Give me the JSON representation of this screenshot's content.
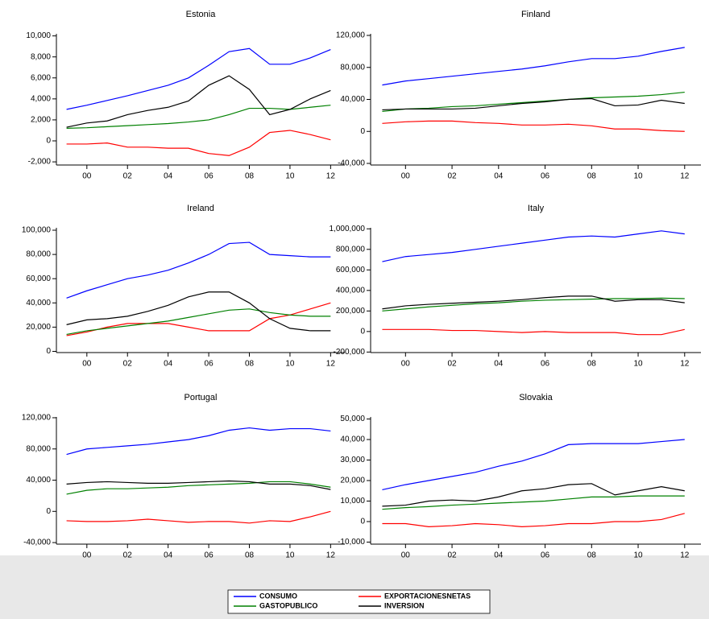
{
  "chart_data": [
    {
      "type": "line",
      "title": "Estonia",
      "x": [
        1999,
        2000,
        2001,
        2002,
        2003,
        2004,
        2005,
        2006,
        2007,
        2008,
        2009,
        2010,
        2011,
        2012
      ],
      "xlim": [
        1998.5,
        2012.7
      ],
      "xticks": [
        {
          "value": 2000,
          "label": "00"
        },
        {
          "value": 2002,
          "label": "02"
        },
        {
          "value": 2004,
          "label": "04"
        },
        {
          "value": 2006,
          "label": "06"
        },
        {
          "value": 2008,
          "label": "08"
        },
        {
          "value": 2010,
          "label": "10"
        },
        {
          "value": 2012,
          "label": "12"
        }
      ],
      "ylim": [
        -2300,
        10200
      ],
      "yticks": [
        {
          "value": -2000,
          "label": "-2,000"
        },
        0,
        {
          "value": 2000,
          "label": "2,000"
        },
        {
          "value": 4000,
          "label": "4,000"
        },
        {
          "value": 6000,
          "label": "6,000"
        },
        {
          "value": 8000,
          "label": "8,000"
        },
        {
          "value": 10000,
          "label": "10,000"
        }
      ],
      "series": [
        {
          "name": "CONSUMO",
          "color": "#0000ff",
          "values": [
            3000,
            3400,
            3850,
            4300,
            4800,
            5300,
            6000,
            7200,
            8500,
            8800,
            7300,
            7300,
            7900,
            8700
          ]
        },
        {
          "name": "EXPORTACIONESNETAS",
          "color": "#ff0000",
          "values": [
            -300,
            -300,
            -200,
            -600,
            -600,
            -700,
            -700,
            -1200,
            -1400,
            -600,
            800,
            1000,
            600,
            100
          ]
        },
        {
          "name": "GASTOPUBLICO",
          "color": "#008000",
          "values": [
            1200,
            1250,
            1350,
            1450,
            1550,
            1650,
            1800,
            2000,
            2500,
            3100,
            3100,
            3000,
            3200,
            3400
          ]
        },
        {
          "name": "INVERSION",
          "color": "#000000",
          "values": [
            1300,
            1700,
            1900,
            2500,
            2900,
            3200,
            3800,
            5300,
            6200,
            4900,
            2500,
            3000,
            4000,
            4800
          ]
        }
      ]
    },
    {
      "type": "line",
      "title": "Finland",
      "x": [
        1999,
        2000,
        2001,
        2002,
        2003,
        2004,
        2005,
        2006,
        2007,
        2008,
        2009,
        2010,
        2011,
        2012
      ],
      "xlim": [
        1998.5,
        2012.7
      ],
      "xticks": [
        {
          "value": 2000,
          "label": "00"
        },
        {
          "value": 2002,
          "label": "02"
        },
        {
          "value": 2004,
          "label": "04"
        },
        {
          "value": 2006,
          "label": "06"
        },
        {
          "value": 2008,
          "label": "08"
        },
        {
          "value": 2010,
          "label": "10"
        },
        {
          "value": 2012,
          "label": "12"
        }
      ],
      "ylim": [
        -42000,
        122000
      ],
      "yticks": [
        {
          "value": -40000,
          "label": "-40,000"
        },
        0,
        {
          "value": 40000,
          "label": "40,000"
        },
        {
          "value": 80000,
          "label": "80,000"
        },
        {
          "value": 120000,
          "label": "120,000"
        }
      ],
      "series": [
        {
          "name": "CONSUMO",
          "color": "#0000ff",
          "values": [
            58000,
            63000,
            66000,
            69000,
            72000,
            75000,
            78000,
            82000,
            87000,
            91000,
            91000,
            94000,
            100000,
            105000
          ]
        },
        {
          "name": "EXPORTACIONESNETAS",
          "color": "#ff0000",
          "values": [
            10000,
            12000,
            13000,
            13000,
            11000,
            10000,
            8000,
            8000,
            9000,
            7000,
            3000,
            3000,
            1000,
            0
          ]
        },
        {
          "name": "GASTOPUBLICO",
          "color": "#008000",
          "values": [
            25000,
            28000,
            29000,
            31000,
            32000,
            34000,
            36000,
            38000,
            40000,
            42000,
            43000,
            44000,
            46000,
            49000
          ]
        },
        {
          "name": "INVERSION",
          "color": "#000000",
          "values": [
            27000,
            28000,
            28000,
            28000,
            29000,
            32000,
            35000,
            37000,
            40000,
            41000,
            32000,
            33000,
            39000,
            35000
          ]
        }
      ]
    },
    {
      "type": "line",
      "title": "Ireland",
      "x": [
        1999,
        2000,
        2001,
        2002,
        2003,
        2004,
        2005,
        2006,
        2007,
        2008,
        2009,
        2010,
        2011,
        2012
      ],
      "xlim": [
        1998.5,
        2012.7
      ],
      "xticks": [
        {
          "value": 2000,
          "label": "00"
        },
        {
          "value": 2002,
          "label": "02"
        },
        {
          "value": 2004,
          "label": "04"
        },
        {
          "value": 2006,
          "label": "06"
        },
        {
          "value": 2008,
          "label": "08"
        },
        {
          "value": 2010,
          "label": "10"
        },
        {
          "value": 2012,
          "label": "12"
        }
      ],
      "ylim": [
        -1000,
        102000
      ],
      "yticks": [
        0,
        {
          "value": 20000,
          "label": "20,000"
        },
        {
          "value": 40000,
          "label": "40,000"
        },
        {
          "value": 60000,
          "label": "60,000"
        },
        {
          "value": 80000,
          "label": "80,000"
        },
        {
          "value": 100000,
          "label": "100,000"
        }
      ],
      "series": [
        {
          "name": "CONSUMO",
          "color": "#0000ff",
          "values": [
            44000,
            50000,
            55000,
            60000,
            63000,
            67000,
            73000,
            80000,
            89000,
            90000,
            80000,
            79000,
            78000,
            78000
          ]
        },
        {
          "name": "EXPORTACIONESNETAS",
          "color": "#ff0000",
          "values": [
            13000,
            16000,
            20000,
            23000,
            23000,
            23000,
            20000,
            17000,
            17000,
            17000,
            27000,
            30000,
            35000,
            40000
          ]
        },
        {
          "name": "GASTOPUBLICO",
          "color": "#008000",
          "values": [
            14000,
            17000,
            19000,
            21000,
            23000,
            25000,
            28000,
            31000,
            34000,
            35000,
            32000,
            30000,
            29000,
            29000
          ]
        },
        {
          "name": "INVERSION",
          "color": "#000000",
          "values": [
            22000,
            26000,
            27000,
            29000,
            33000,
            38000,
            45000,
            49000,
            49000,
            40000,
            27000,
            19000,
            17000,
            17000
          ]
        }
      ]
    },
    {
      "type": "line",
      "title": "Italy",
      "x": [
        1999,
        2000,
        2001,
        2002,
        2003,
        2004,
        2005,
        2006,
        2007,
        2008,
        2009,
        2010,
        2011,
        2012
      ],
      "xlim": [
        1998.5,
        2012.7
      ],
      "xticks": [
        {
          "value": 2000,
          "label": "00"
        },
        {
          "value": 2002,
          "label": "02"
        },
        {
          "value": 2004,
          "label": "04"
        },
        {
          "value": 2006,
          "label": "06"
        },
        {
          "value": 2008,
          "label": "08"
        },
        {
          "value": 2010,
          "label": "10"
        },
        {
          "value": 2012,
          "label": "12"
        }
      ],
      "ylim": [
        -205000,
        1010000
      ],
      "yticks": [
        {
          "value": -200000,
          "label": "-200,000"
        },
        0,
        {
          "value": 200000,
          "label": "200,000"
        },
        {
          "value": 400000,
          "label": "400,000"
        },
        {
          "value": 600000,
          "label": "600,000"
        },
        {
          "value": 800000,
          "label": "800,000"
        },
        {
          "value": 1000000,
          "label": "1,000,000"
        }
      ],
      "series": [
        {
          "name": "CONSUMO",
          "color": "#0000ff",
          "values": [
            680000,
            730000,
            750000,
            770000,
            800000,
            830000,
            860000,
            890000,
            920000,
            930000,
            920000,
            950000,
            980000,
            950000
          ]
        },
        {
          "name": "EXPORTACIONESNETAS",
          "color": "#ff0000",
          "values": [
            20000,
            20000,
            20000,
            10000,
            10000,
            0,
            -10000,
            0,
            -10000,
            -10000,
            -10000,
            -30000,
            -30000,
            20000
          ]
        },
        {
          "name": "GASTOPUBLICO",
          "color": "#008000",
          "values": [
            200000,
            220000,
            240000,
            255000,
            270000,
            280000,
            295000,
            305000,
            310000,
            315000,
            320000,
            320000,
            325000,
            320000
          ]
        },
        {
          "name": "INVERSION",
          "color": "#000000",
          "values": [
            220000,
            250000,
            265000,
            275000,
            285000,
            295000,
            310000,
            330000,
            345000,
            345000,
            295000,
            310000,
            310000,
            280000
          ]
        }
      ]
    },
    {
      "type": "line",
      "title": "Portugal",
      "x": [
        1999,
        2000,
        2001,
        2002,
        2003,
        2004,
        2005,
        2006,
        2007,
        2008,
        2009,
        2010,
        2011,
        2012
      ],
      "xlim": [
        1998.5,
        2012.7
      ],
      "xticks": [
        {
          "value": 2000,
          "label": "00"
        },
        {
          "value": 2002,
          "label": "02"
        },
        {
          "value": 2004,
          "label": "04"
        },
        {
          "value": 2006,
          "label": "06"
        },
        {
          "value": 2008,
          "label": "08"
        },
        {
          "value": 2010,
          "label": "10"
        },
        {
          "value": 2012,
          "label": "12"
        }
      ],
      "ylim": [
        -42000,
        121000
      ],
      "yticks": [
        {
          "value": -40000,
          "label": "-40,000"
        },
        0,
        {
          "value": 40000,
          "label": "40,000"
        },
        {
          "value": 80000,
          "label": "80,000"
        },
        {
          "value": 120000,
          "label": "120,000"
        }
      ],
      "series": [
        {
          "name": "CONSUMO",
          "color": "#0000ff",
          "values": [
            73000,
            80000,
            82000,
            84000,
            86000,
            89000,
            92000,
            97000,
            104000,
            107000,
            104000,
            106000,
            106000,
            103000
          ]
        },
        {
          "name": "EXPORTACIONESNETAS",
          "color": "#ff0000",
          "values": [
            -12000,
            -13000,
            -13000,
            -12000,
            -10000,
            -12000,
            -14000,
            -13000,
            -13000,
            -15000,
            -12000,
            -13000,
            -7000,
            0
          ]
        },
        {
          "name": "GASTOPUBLICO",
          "color": "#008000",
          "values": [
            22000,
            27000,
            29000,
            29000,
            30000,
            31000,
            33000,
            34000,
            35000,
            36000,
            38000,
            38000,
            35000,
            31000
          ]
        },
        {
          "name": "INVERSION",
          "color": "#000000",
          "values": [
            35000,
            37000,
            38000,
            37000,
            36000,
            36000,
            37000,
            38000,
            39000,
            38000,
            35000,
            35000,
            33000,
            28000
          ]
        }
      ]
    },
    {
      "type": "line",
      "title": "Slovakia",
      "x": [
        1999,
        2000,
        2001,
        2002,
        2003,
        2004,
        2005,
        2006,
        2007,
        2008,
        2009,
        2010,
        2011,
        2012
      ],
      "xlim": [
        1998.5,
        2012.7
      ],
      "xticks": [
        {
          "value": 2000,
          "label": "00"
        },
        {
          "value": 2002,
          "label": "02"
        },
        {
          "value": 2004,
          "label": "04"
        },
        {
          "value": 2006,
          "label": "06"
        },
        {
          "value": 2008,
          "label": "08"
        },
        {
          "value": 2010,
          "label": "10"
        },
        {
          "value": 2012,
          "label": "12"
        }
      ],
      "ylim": [
        -11000,
        51000
      ],
      "yticks": [
        {
          "value": -10000,
          "label": "-10,000"
        },
        0,
        {
          "value": 10000,
          "label": "10,000"
        },
        {
          "value": 20000,
          "label": "20,000"
        },
        {
          "value": 30000,
          "label": "30,000"
        },
        {
          "value": 40000,
          "label": "40,000"
        },
        {
          "value": 50000,
          "label": "50,000"
        }
      ],
      "series": [
        {
          "name": "CONSUMO",
          "color": "#0000ff",
          "values": [
            15500,
            18000,
            20000,
            22000,
            24000,
            27000,
            29500,
            33000,
            37500,
            38000,
            38000,
            38000,
            39000,
            40000
          ]
        },
        {
          "name": "EXPORTACIONESNETAS",
          "color": "#ff0000",
          "values": [
            -1000,
            -1000,
            -2500,
            -2000,
            -1000,
            -1500,
            -2500,
            -2000,
            -1000,
            -1000,
            0,
            0,
            1000,
            4000
          ]
        },
        {
          "name": "GASTOPUBLICO",
          "color": "#008000",
          "values": [
            6000,
            6800,
            7300,
            8000,
            8500,
            9000,
            9500,
            10000,
            11000,
            12000,
            12000,
            12500,
            12500,
            12500
          ]
        },
        {
          "name": "INVERSION",
          "color": "#000000",
          "values": [
            7500,
            8000,
            10000,
            10500,
            10000,
            12000,
            15000,
            16000,
            18000,
            18500,
            13000,
            15000,
            17000,
            15000
          ]
        }
      ]
    }
  ]
}
